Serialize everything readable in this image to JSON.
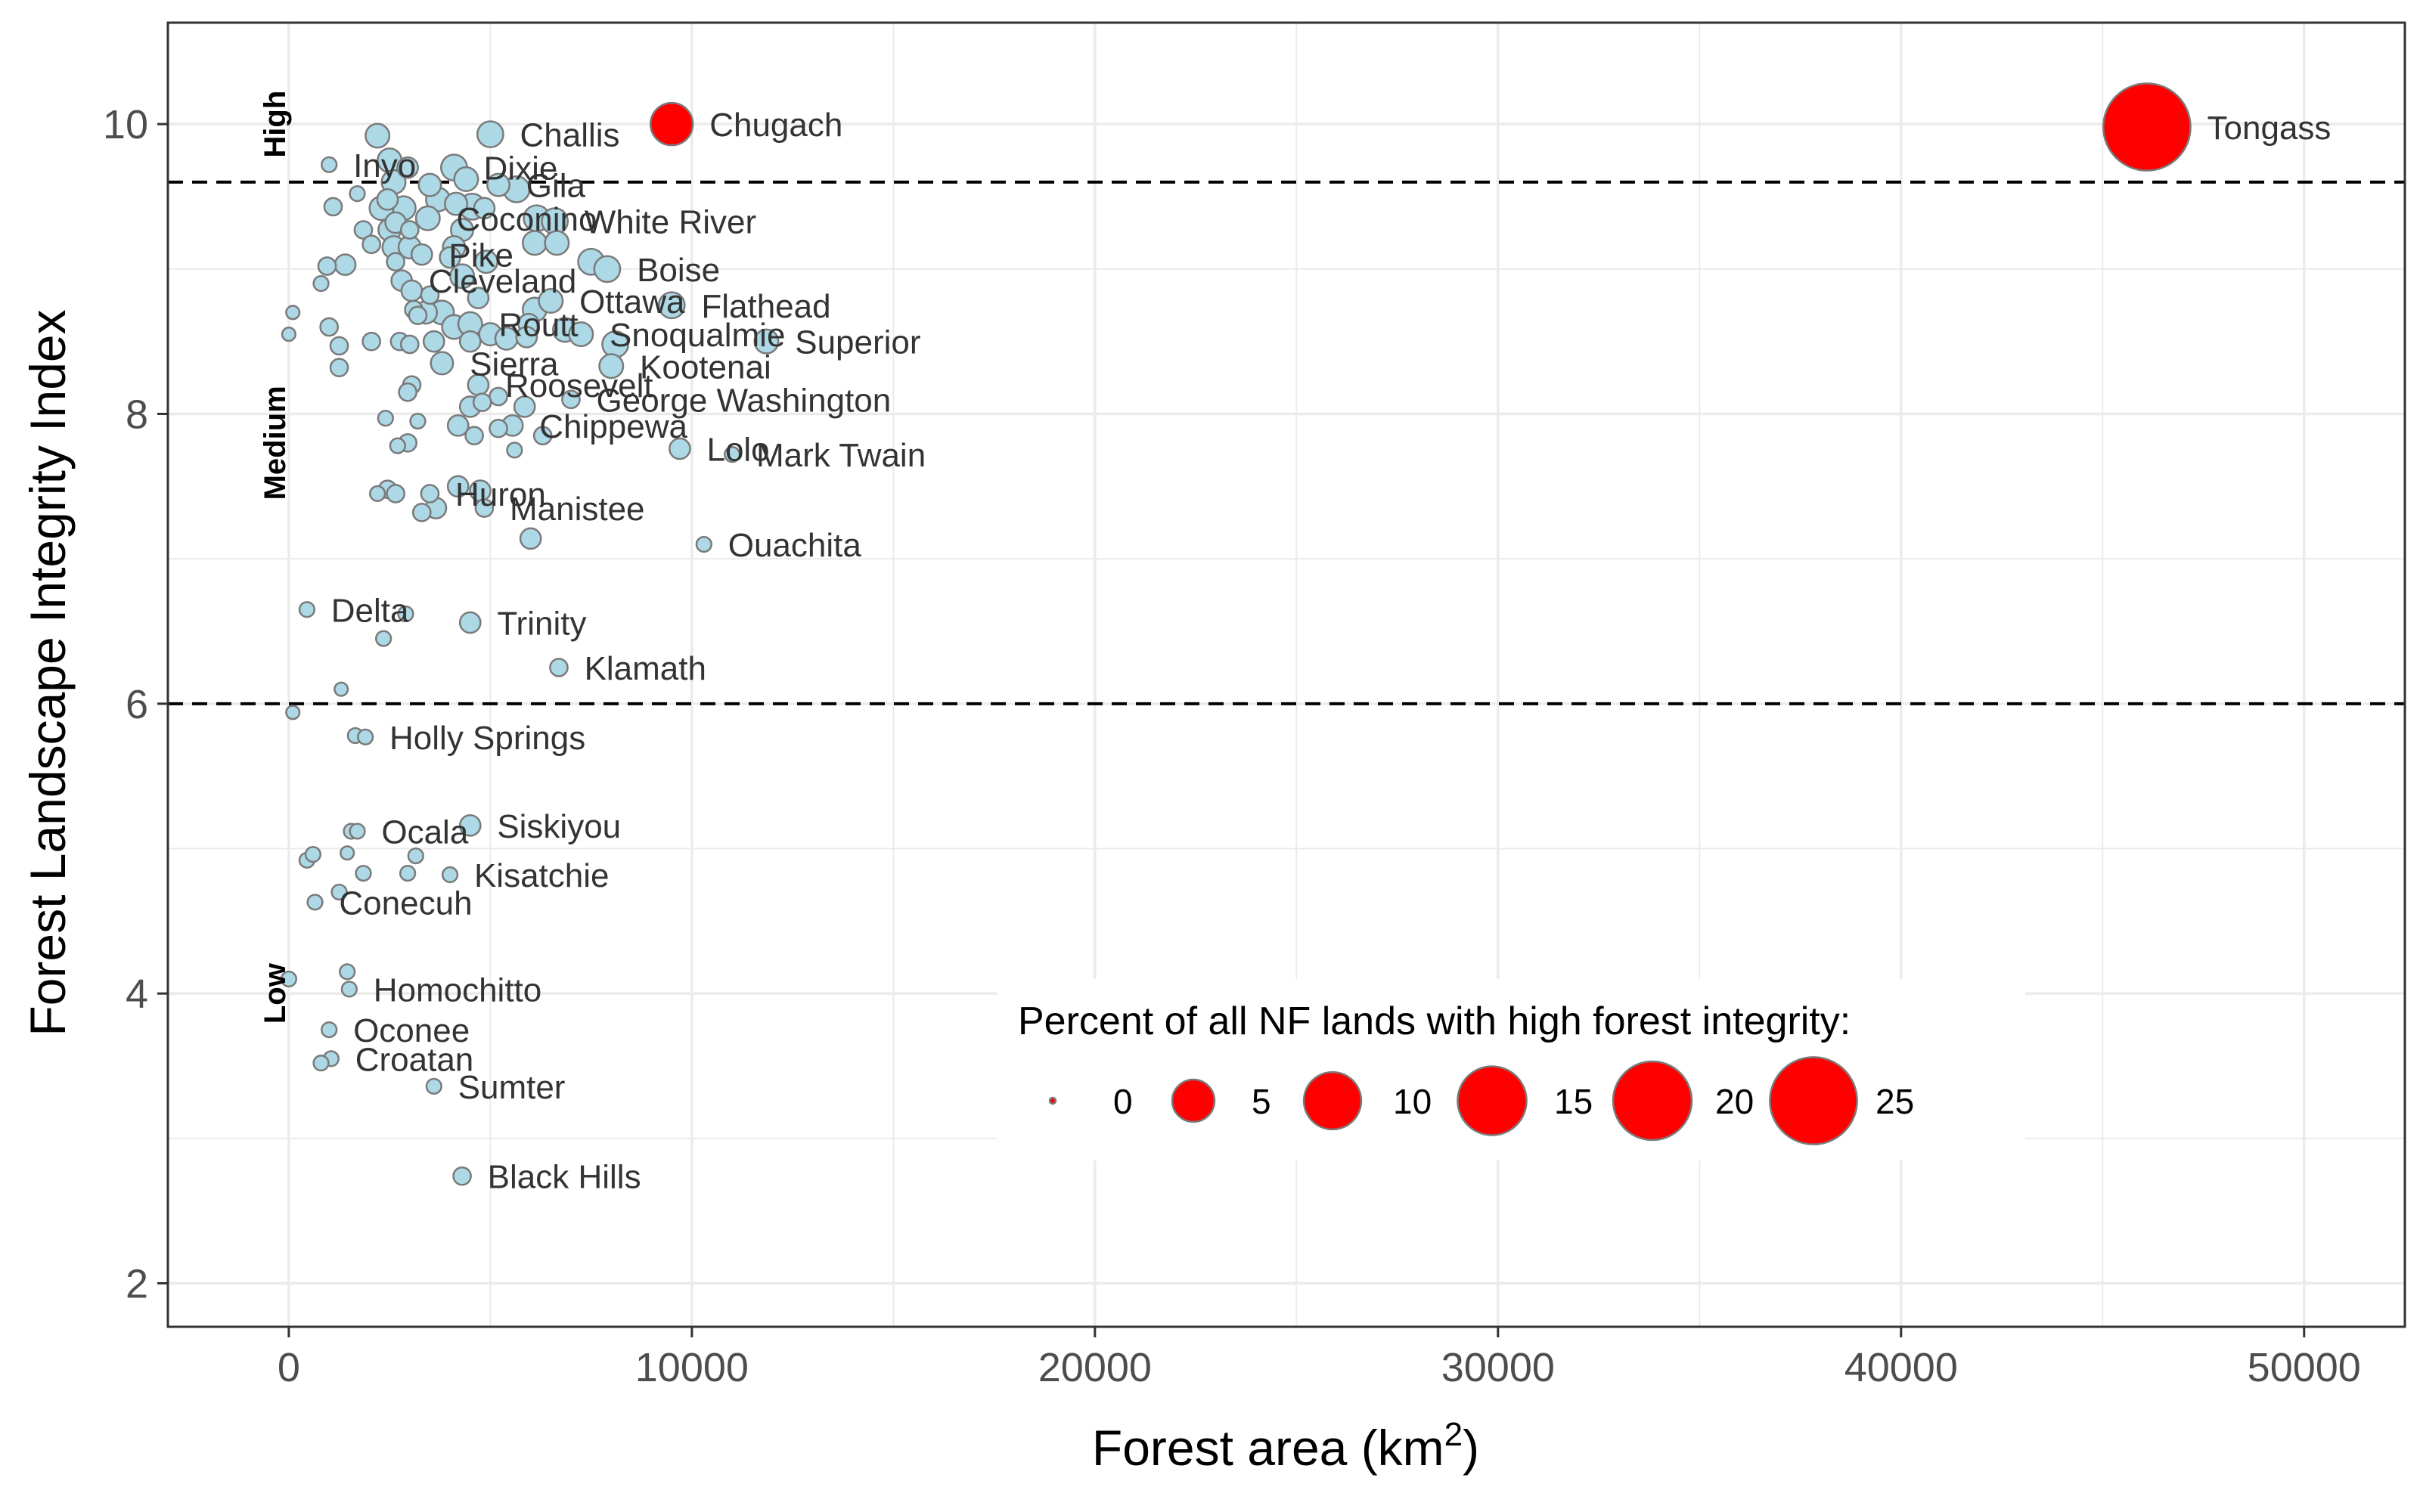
{
  "chart_data": {
    "type": "scatter",
    "title": "",
    "xlabel": "Forest area (km",
    "xlabel_superscript": "2",
    "xlabel_suffix": ")",
    "ylabel": "Forest Landscape Integrity Index",
    "xlim": [
      -3000,
      52500
    ],
    "ylim": [
      1.7,
      10.7
    ],
    "x_ticks": [
      0,
      10000,
      20000,
      30000,
      40000,
      50000
    ],
    "y_ticks": [
      2,
      4,
      6,
      8,
      10
    ],
    "grid": true,
    "thresholds": [
      9.6,
      6.0
    ],
    "band_labels": [
      {
        "text": "High",
        "y": 10.0
      },
      {
        "text": "Medium",
        "y": 7.8
      },
      {
        "text": "Low",
        "y": 4.0
      }
    ],
    "colors": {
      "point_fill": "#add8e6",
      "point_stroke": "#7a7a7a",
      "highlight_fill": "#ff0000",
      "grid": "#ebebeb",
      "panel_border": "#333333",
      "threshold": "#000000"
    },
    "legend": {
      "title": "Percent of all NF lands with high forest integrity:",
      "values": [
        0,
        5,
        10,
        15,
        20,
        25
      ],
      "labels": [
        "0",
        "5",
        "10",
        "15",
        "20",
        "25"
      ],
      "placement": "bottom-right inside panel"
    },
    "points": [
      {
        "x": 46100,
        "y": 9.98,
        "pct": 25,
        "highlight": true,
        "label": "Tongass"
      },
      {
        "x": 9500,
        "y": 10.0,
        "pct": 5,
        "highlight": true,
        "label": "Chugach"
      },
      {
        "x": 5000,
        "y": 9.93,
        "pct": 1.5,
        "label": "Challis"
      },
      {
        "x": 2200,
        "y": 9.92,
        "pct": 1.2
      },
      {
        "x": 1000,
        "y": 9.72,
        "pct": 0.3,
        "label": "Inyo"
      },
      {
        "x": 2500,
        "y": 9.75,
        "pct": 1.2
      },
      {
        "x": 2950,
        "y": 9.7,
        "pct": 0.8
      },
      {
        "x": 4100,
        "y": 9.7,
        "pct": 1.5,
        "label": "Dixie"
      },
      {
        "x": 2600,
        "y": 9.6,
        "pct": 1.2
      },
      {
        "x": 3500,
        "y": 9.58,
        "pct": 1.0
      },
      {
        "x": 4400,
        "y": 9.62,
        "pct": 1.2
      },
      {
        "x": 5200,
        "y": 9.58,
        "pct": 1.0,
        "label": "Gila"
      },
      {
        "x": 5650,
        "y": 9.55,
        "pct": 1.5
      },
      {
        "x": 1700,
        "y": 9.52,
        "pct": 0.3
      },
      {
        "x": 2450,
        "y": 9.48,
        "pct": 0.8
      },
      {
        "x": 2850,
        "y": 9.42,
        "pct": 1.2
      },
      {
        "x": 3700,
        "y": 9.48,
        "pct": 1.2
      },
      {
        "x": 4150,
        "y": 9.45,
        "pct": 1.0
      },
      {
        "x": 4550,
        "y": 9.43,
        "pct": 1.5
      },
      {
        "x": 4850,
        "y": 9.42,
        "pct": 0.8
      },
      {
        "x": 1100,
        "y": 9.43,
        "pct": 0.5
      },
      {
        "x": 2300,
        "y": 9.42,
        "pct": 1.2
      },
      {
        "x": 2650,
        "y": 9.32,
        "pct": 0.8
      },
      {
        "x": 3450,
        "y": 9.35,
        "pct": 1.2,
        "label": "Coconino"
      },
      {
        "x": 6150,
        "y": 9.35,
        "pct": 1.5
      },
      {
        "x": 6600,
        "y": 9.33,
        "pct": 1.5,
        "label": "White River"
      },
      {
        "x": 1850,
        "y": 9.27,
        "pct": 0.5
      },
      {
        "x": 2500,
        "y": 9.27,
        "pct": 1.0
      },
      {
        "x": 3000,
        "y": 9.27,
        "pct": 0.5
      },
      {
        "x": 4300,
        "y": 9.27,
        "pct": 1.0
      },
      {
        "x": 2050,
        "y": 9.17,
        "pct": 0.5
      },
      {
        "x": 2600,
        "y": 9.15,
        "pct": 1.0
      },
      {
        "x": 3000,
        "y": 9.15,
        "pct": 1.0
      },
      {
        "x": 4100,
        "y": 9.15,
        "pct": 1.0
      },
      {
        "x": 6100,
        "y": 9.18,
        "pct": 1.2
      },
      {
        "x": 6650,
        "y": 9.18,
        "pct": 1.2
      },
      {
        "x": 2650,
        "y": 9.05,
        "pct": 0.5
      },
      {
        "x": 3300,
        "y": 9.1,
        "pct": 0.8,
        "label": "Pike"
      },
      {
        "x": 4000,
        "y": 9.08,
        "pct": 0.8
      },
      {
        "x": 4900,
        "y": 9.05,
        "pct": 1.0
      },
      {
        "x": 7500,
        "y": 9.05,
        "pct": 1.5
      },
      {
        "x": 1400,
        "y": 9.03,
        "pct": 0.8
      },
      {
        "x": 950,
        "y": 9.02,
        "pct": 0.5
      },
      {
        "x": 7900,
        "y": 9.0,
        "pct": 1.5,
        "label": "Boise"
      },
      {
        "x": 800,
        "y": 8.9,
        "pct": 0.3
      },
      {
        "x": 2800,
        "y": 8.92,
        "pct": 0.8,
        "label": "Cleveland"
      },
      {
        "x": 4300,
        "y": 8.95,
        "pct": 1.2
      },
      {
        "x": 3050,
        "y": 8.85,
        "pct": 0.8
      },
      {
        "x": 3500,
        "y": 8.82,
        "pct": 0.5
      },
      {
        "x": 4700,
        "y": 8.8,
        "pct": 0.8
      },
      {
        "x": 3100,
        "y": 8.72,
        "pct": 0.5
      },
      {
        "x": 3400,
        "y": 8.7,
        "pct": 1.0
      },
      {
        "x": 3800,
        "y": 8.7,
        "pct": 1.2
      },
      {
        "x": 6100,
        "y": 8.72,
        "pct": 1.2
      },
      {
        "x": 6500,
        "y": 8.78,
        "pct": 1.2,
        "label": "Ottawa"
      },
      {
        "x": 9500,
        "y": 8.75,
        "pct": 1.5,
        "label": "Flathead"
      },
      {
        "x": 3200,
        "y": 8.68,
        "pct": 0.5
      },
      {
        "x": 100,
        "y": 8.7,
        "pct": 0.2
      },
      {
        "x": 4100,
        "y": 8.6,
        "pct": 1.2
      },
      {
        "x": 4500,
        "y": 8.62,
        "pct": 1.2,
        "label": "Routt"
      },
      {
        "x": 5950,
        "y": 8.62,
        "pct": 0.8
      },
      {
        "x": 6850,
        "y": 8.58,
        "pct": 1.2
      },
      {
        "x": 7250,
        "y": 8.55,
        "pct": 1.2,
        "label": "Snoqualmie"
      },
      {
        "x": 1000,
        "y": 8.6,
        "pct": 0.5
      },
      {
        "x": 0,
        "y": 8.55,
        "pct": 0.2
      },
      {
        "x": 1250,
        "y": 8.47,
        "pct": 0.5
      },
      {
        "x": 2050,
        "y": 8.5,
        "pct": 0.5
      },
      {
        "x": 2750,
        "y": 8.5,
        "pct": 0.5
      },
      {
        "x": 3000,
        "y": 8.48,
        "pct": 0.5
      },
      {
        "x": 3600,
        "y": 8.5,
        "pct": 0.8
      },
      {
        "x": 4500,
        "y": 8.5,
        "pct": 0.8
      },
      {
        "x": 5000,
        "y": 8.55,
        "pct": 1.0
      },
      {
        "x": 5400,
        "y": 8.52,
        "pct": 1.0
      },
      {
        "x": 5900,
        "y": 8.53,
        "pct": 0.8
      },
      {
        "x": 8100,
        "y": 8.48,
        "pct": 1.5
      },
      {
        "x": 11850,
        "y": 8.5,
        "pct": 1.2,
        "label": "Superior"
      },
      {
        "x": 1250,
        "y": 8.32,
        "pct": 0.5
      },
      {
        "x": 3800,
        "y": 8.35,
        "pct": 1.0,
        "label": "Sierra"
      },
      {
        "x": 8000,
        "y": 8.33,
        "pct": 1.2,
        "label": "Kootenai"
      },
      {
        "x": 3050,
        "y": 8.2,
        "pct": 0.5
      },
      {
        "x": 2950,
        "y": 8.15,
        "pct": 0.5
      },
      {
        "x": 4700,
        "y": 8.2,
        "pct": 0.8,
        "label": "Roosevelt"
      },
      {
        "x": 5200,
        "y": 8.12,
        "pct": 0.5
      },
      {
        "x": 4800,
        "y": 8.08,
        "pct": 0.5
      },
      {
        "x": 5850,
        "y": 8.05,
        "pct": 0.8
      },
      {
        "x": 7000,
        "y": 8.1,
        "pct": 0.5,
        "label": "George Washington"
      },
      {
        "x": 4500,
        "y": 8.05,
        "pct": 0.8
      },
      {
        "x": 2400,
        "y": 7.97,
        "pct": 0.3
      },
      {
        "x": 3200,
        "y": 7.95,
        "pct": 0.3
      },
      {
        "x": 4200,
        "y": 7.92,
        "pct": 0.8
      },
      {
        "x": 5200,
        "y": 7.9,
        "pct": 0.5
      },
      {
        "x": 5550,
        "y": 7.92,
        "pct": 0.8,
        "label": "Chippewa"
      },
      {
        "x": 4600,
        "y": 7.85,
        "pct": 0.5
      },
      {
        "x": 6300,
        "y": 7.85,
        "pct": 0.5
      },
      {
        "x": 2700,
        "y": 7.78,
        "pct": 0.3
      },
      {
        "x": 2950,
        "y": 7.8,
        "pct": 0.5
      },
      {
        "x": 5600,
        "y": 7.75,
        "pct": 0.3
      },
      {
        "x": 9700,
        "y": 7.76,
        "pct": 0.8,
        "label": "Lolo"
      },
      {
        "x": 11000,
        "y": 7.72,
        "pct": 0.3,
        "label": "Mark Twain"
      },
      {
        "x": 2200,
        "y": 7.45,
        "pct": 0.3
      },
      {
        "x": 2450,
        "y": 7.48,
        "pct": 0.5
      },
      {
        "x": 2650,
        "y": 7.45,
        "pct": 0.5
      },
      {
        "x": 3500,
        "y": 7.45,
        "pct": 0.5,
        "label": "Huron"
      },
      {
        "x": 4200,
        "y": 7.5,
        "pct": 0.8
      },
      {
        "x": 4750,
        "y": 7.47,
        "pct": 0.8
      },
      {
        "x": 3300,
        "y": 7.32,
        "pct": 0.5
      },
      {
        "x": 3650,
        "y": 7.35,
        "pct": 0.8
      },
      {
        "x": 4850,
        "y": 7.35,
        "pct": 0.5,
        "label": "Manistee"
      },
      {
        "x": 6000,
        "y": 7.14,
        "pct": 0.8
      },
      {
        "x": 10300,
        "y": 7.1,
        "pct": 0.3,
        "label": "Ouachita"
      },
      {
        "x": 450,
        "y": 6.65,
        "pct": 0.3,
        "label": "Delta"
      },
      {
        "x": 2900,
        "y": 6.62,
        "pct": 0.3
      },
      {
        "x": 4500,
        "y": 6.56,
        "pct": 0.8,
        "label": "Trinity"
      },
      {
        "x": 2350,
        "y": 6.45,
        "pct": 0.3
      },
      {
        "x": 6700,
        "y": 6.25,
        "pct": 0.5,
        "label": "Klamath"
      },
      {
        "x": 1300,
        "y": 6.1,
        "pct": 0.2
      },
      {
        "x": 100,
        "y": 5.94,
        "pct": 0.2
      },
      {
        "x": 1650,
        "y": 5.78,
        "pct": 0.3
      },
      {
        "x": 1900,
        "y": 5.77,
        "pct": 0.3,
        "label": "Holly Springs"
      },
      {
        "x": 4500,
        "y": 5.16,
        "pct": 0.8,
        "label": "Siskiyou"
      },
      {
        "x": 1550,
        "y": 5.12,
        "pct": 0.3
      },
      {
        "x": 1700,
        "y": 5.12,
        "pct": 0.3,
        "label": "Ocala"
      },
      {
        "x": 450,
        "y": 4.92,
        "pct": 0.3
      },
      {
        "x": 600,
        "y": 4.96,
        "pct": 0.3
      },
      {
        "x": 1450,
        "y": 4.97,
        "pct": 0.2
      },
      {
        "x": 3150,
        "y": 4.95,
        "pct": 0.3
      },
      {
        "x": 1850,
        "y": 4.83,
        "pct": 0.3
      },
      {
        "x": 2950,
        "y": 4.83,
        "pct": 0.3
      },
      {
        "x": 4000,
        "y": 4.82,
        "pct": 0.3,
        "label": "Kisatchie"
      },
      {
        "x": 1250,
        "y": 4.7,
        "pct": 0.3
      },
      {
        "x": 650,
        "y": 4.63,
        "pct": 0.3,
        "label": "Conecuh"
      },
      {
        "x": 1450,
        "y": 4.15,
        "pct": 0.3
      },
      {
        "x": 0,
        "y": 4.1,
        "pct": 0.3
      },
      {
        "x": 1500,
        "y": 4.03,
        "pct": 0.3,
        "label": "Homochitto"
      },
      {
        "x": 1000,
        "y": 3.75,
        "pct": 0.3,
        "label": "Oconee"
      },
      {
        "x": 1050,
        "y": 3.55,
        "pct": 0.3,
        "label": "Croatan"
      },
      {
        "x": 800,
        "y": 3.52,
        "pct": 0.3
      },
      {
        "x": 3600,
        "y": 3.36,
        "pct": 0.3,
        "label": "Sumter"
      },
      {
        "x": 4300,
        "y": 2.74,
        "pct": 0.5,
        "label": "Black Hills"
      }
    ]
  }
}
